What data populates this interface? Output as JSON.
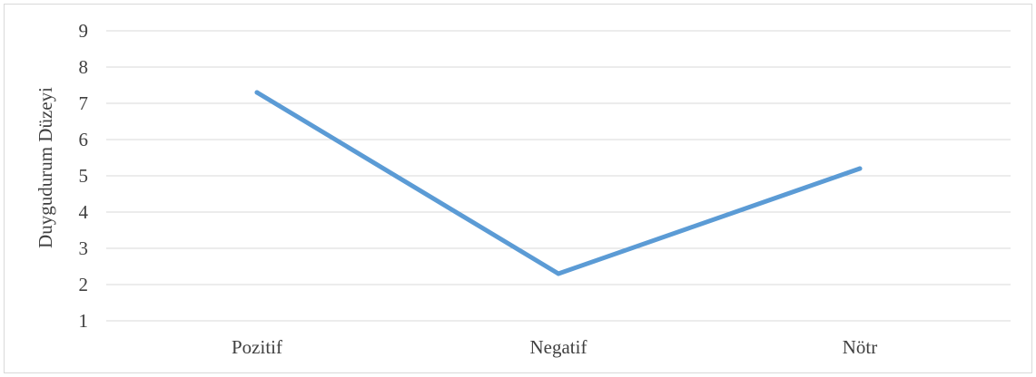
{
  "chart_data": {
    "type": "line",
    "title": "",
    "xlabel": "",
    "ylabel": "Duygudurum Düzeyi",
    "categories": [
      "Pozitif",
      "Negatif",
      "Nötr"
    ],
    "ylim": [
      1,
      9
    ],
    "yticks": [
      1,
      2,
      3,
      4,
      5,
      6,
      7,
      8,
      9
    ],
    "grid": true,
    "legend": "none",
    "series": [
      {
        "values": [
          7.3,
          2.3,
          5.2
        ],
        "color": "#5b9bd5"
      }
    ]
  },
  "colors": {
    "grid": "#d9d9d9",
    "text": "#404040",
    "border": "#d9d9d9"
  }
}
